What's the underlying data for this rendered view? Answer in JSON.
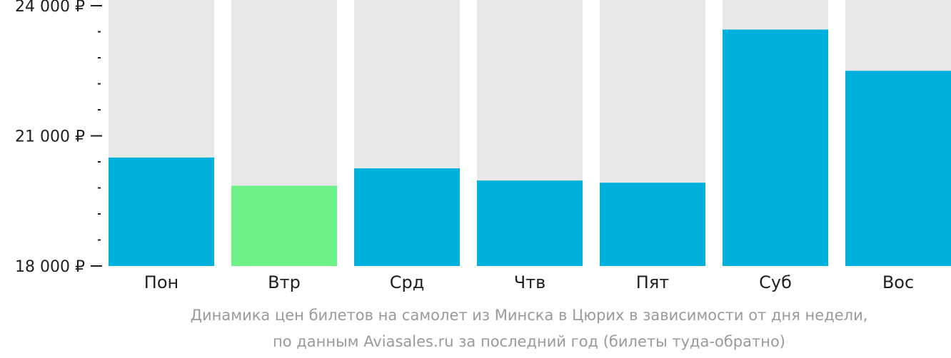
{
  "chart_data": {
    "type": "bar",
    "categories": [
      "Пон",
      "Втр",
      "Срд",
      "Чтв",
      "Пят",
      "Суб",
      "Вос"
    ],
    "values": [
      20500,
      19850,
      20250,
      19970,
      19920,
      23450,
      22500
    ],
    "ylim": [
      18000,
      24000
    ],
    "yticks": [
      {
        "value": 18000,
        "label": "18 000 ₽"
      },
      {
        "value": 21000,
        "label": "21 000 ₽"
      },
      {
        "value": 24000,
        "label": "24 000 ₽"
      }
    ],
    "minor_tick_step": 600,
    "highlight_index": 1,
    "colors": {
      "bar": "#00b0dc",
      "highlight": "#6cf287",
      "background_bar": "#e8e8e8",
      "axis": "#1f1f1f"
    }
  },
  "caption": {
    "line1": "Динамика цен билетов на самолет из Минска в Цюрих в зависимости от дня недели,",
    "line2": "по данным Aviasales.ru за последний год (билеты туда-обратно)"
  }
}
